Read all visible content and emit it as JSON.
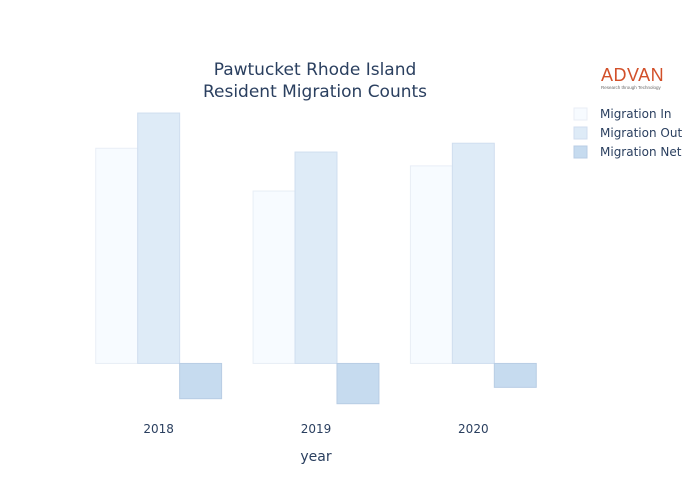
{
  "chart_data": {
    "type": "bar",
    "title_lines": [
      "Pawtucket Rhode Island",
      "Resident Migration Counts"
    ],
    "xlabel": "year",
    "ylabel": "",
    "categories": [
      "2018",
      "2019",
      "2020"
    ],
    "series": [
      {
        "name": "Migration In",
        "values": [
          1710,
          1370,
          1570
        ],
        "fill": "#f7fbff",
        "stroke": "#e8eef6"
      },
      {
        "name": "Migration Out",
        "values": [
          1990,
          1680,
          1750
        ],
        "fill": "#deebf7",
        "stroke": "#d0deef"
      },
      {
        "name": "Migration Net",
        "values": [
          -280,
          -320,
          -190
        ],
        "fill": "#c6dbef",
        "stroke": "#b8cde4"
      }
    ],
    "ylim": [
      -370,
      2030
    ],
    "grid": false,
    "legend_position": "top-right"
  },
  "logo": {
    "word": "ADVAN",
    "tagline": "Research through Technology"
  }
}
